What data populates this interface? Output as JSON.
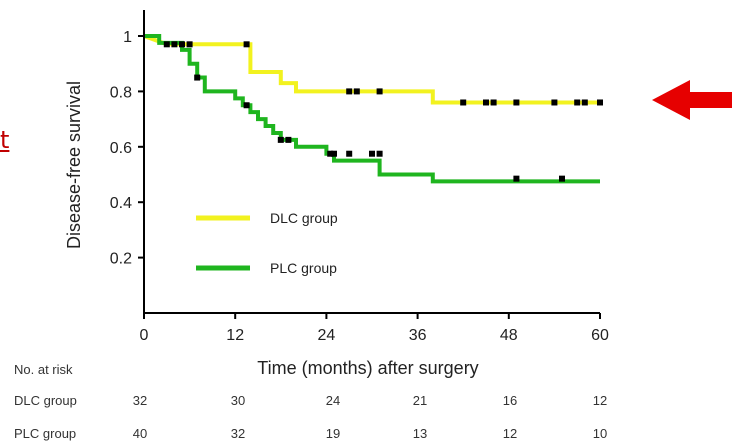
{
  "fragment_text": "t",
  "colors": {
    "dlc": "#f2f21f",
    "plc": "#1fb51f",
    "arrow": "#e60000",
    "censor": "#000000"
  },
  "chart_data": {
    "type": "line",
    "title": "",
    "xlabel": "Time (months) after surgery",
    "ylabel": "Disease-free survival",
    "xlim": [
      0,
      60
    ],
    "ylim": [
      0,
      1.05
    ],
    "x_ticks": [
      0,
      12,
      24,
      36,
      48,
      60
    ],
    "y_ticks": [
      0.2,
      0.4,
      0.6,
      0.8,
      1
    ],
    "x_tick_labels": [
      "0",
      "12",
      "24",
      "36",
      "48",
      "60"
    ],
    "y_tick_labels": [
      "0.2",
      "0.4",
      "0.6",
      "0.8",
      "1"
    ],
    "legend_position": "lower-left",
    "series": [
      {
        "name": "DLC group",
        "color": "#f2f21f",
        "steps": [
          [
            0,
            1
          ],
          [
            3,
            0.97
          ],
          [
            14,
            0.97
          ],
          [
            14,
            0.87
          ],
          [
            18,
            0.87
          ],
          [
            18,
            0.83
          ],
          [
            20,
            0.83
          ],
          [
            20,
            0.8
          ],
          [
            38,
            0.8
          ],
          [
            38,
            0.76
          ],
          [
            60,
            0.76
          ]
        ],
        "censored": [
          [
            3,
            0.97
          ],
          [
            4,
            0.97
          ],
          [
            5,
            0.97
          ],
          [
            6,
            0.97
          ],
          [
            13.5,
            0.97
          ],
          [
            27,
            0.8
          ],
          [
            28,
            0.8
          ],
          [
            31,
            0.8
          ],
          [
            42,
            0.76
          ],
          [
            45,
            0.76
          ],
          [
            46,
            0.76
          ],
          [
            49,
            0.76
          ],
          [
            54,
            0.76
          ],
          [
            57,
            0.76
          ],
          [
            58,
            0.76
          ],
          [
            60,
            0.76
          ]
        ]
      },
      {
        "name": "PLC group",
        "color": "#1fb51f",
        "steps": [
          [
            0,
            1
          ],
          [
            2,
            1
          ],
          [
            2,
            0.975
          ],
          [
            5,
            0.975
          ],
          [
            5,
            0.95
          ],
          [
            6,
            0.95
          ],
          [
            6,
            0.9
          ],
          [
            7,
            0.9
          ],
          [
            7,
            0.85
          ],
          [
            8,
            0.85
          ],
          [
            8,
            0.8
          ],
          [
            12,
            0.8
          ],
          [
            12,
            0.775
          ],
          [
            13,
            0.775
          ],
          [
            13,
            0.75
          ],
          [
            14,
            0.75
          ],
          [
            14,
            0.725
          ],
          [
            15,
            0.725
          ],
          [
            15,
            0.7
          ],
          [
            16,
            0.7
          ],
          [
            16,
            0.675
          ],
          [
            17,
            0.675
          ],
          [
            17,
            0.65
          ],
          [
            18,
            0.65
          ],
          [
            18,
            0.625
          ],
          [
            20,
            0.625
          ],
          [
            20,
            0.6
          ],
          [
            24,
            0.6
          ],
          [
            24,
            0.575
          ],
          [
            25,
            0.575
          ],
          [
            25,
            0.55
          ],
          [
            31,
            0.55
          ],
          [
            31,
            0.5
          ],
          [
            38,
            0.5
          ],
          [
            38,
            0.475
          ],
          [
            60,
            0.475
          ]
        ],
        "censored": [
          [
            7,
            0.85
          ],
          [
            13.5,
            0.75
          ],
          [
            18,
            0.625
          ],
          [
            19,
            0.625
          ],
          [
            24.5,
            0.575
          ],
          [
            25,
            0.575
          ],
          [
            27,
            0.575
          ],
          [
            30,
            0.575
          ],
          [
            31,
            0.575
          ],
          [
            49,
            0.485
          ],
          [
            55,
            0.485
          ]
        ]
      }
    ],
    "risk_table": {
      "label": "No. at risk",
      "rows": [
        {
          "name": "DLC group",
          "values": [
            32,
            30,
            24,
            21,
            16,
            12
          ]
        },
        {
          "name": "PLC group",
          "values": [
            40,
            32,
            19,
            13,
            12,
            10
          ]
        }
      ]
    }
  }
}
